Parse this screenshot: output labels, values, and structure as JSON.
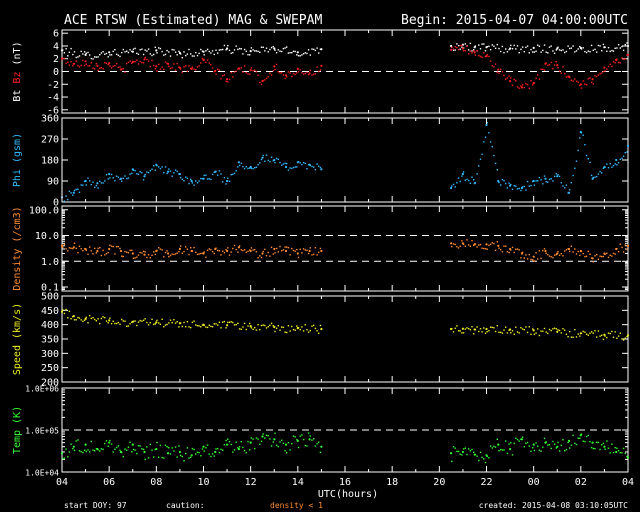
{
  "title": "ACE RTSW (Estimated) MAG & SWEPAM",
  "begin": "Begin: 2015-04-07 04:00:00UTC",
  "xlabel": "UTC(hours)",
  "footer": {
    "start_doy": "start DOY:  97",
    "caution": "caution:",
    "density_warning": "density < 1",
    "created": "created: 2015-04-08 03:10:05UTC"
  },
  "colors": {
    "bt": "#ffffff",
    "bz": "#ff2020",
    "phi": "#33bbff",
    "density": "#ff8c33",
    "speed": "#eeee22",
    "temp": "#33ff33",
    "axes": "#ffffff",
    "warning": "#ff8c33"
  },
  "chart_data": {
    "type": "scatter",
    "x_range": [
      0,
      24
    ],
    "x_ticks": [
      "04",
      "06",
      "08",
      "10",
      "12",
      "14",
      "16",
      "18",
      "20",
      "22",
      "00",
      "02",
      "04"
    ],
    "data_gap_hours": [
      11.3,
      16.4
    ],
    "panels": [
      {
        "id": "mag",
        "ylabel_parts": [
          {
            "text": "Bt",
            "color": "#ffffff"
          },
          {
            "text": " ",
            "color": "#ffffff"
          },
          {
            "text": "Bz",
            "color": "#ff2020"
          },
          {
            "text": " (nT)",
            "color": "#ffffff"
          }
        ],
        "scale": "linear",
        "ylim": [
          -6.5,
          6.5
        ],
        "yticks": [
          -6,
          -4,
          -2,
          0,
          2,
          4,
          6
        ],
        "ytick_labels": [
          "-6",
          "-4",
          "-2",
          "0",
          "2",
          "4",
          "6"
        ],
        "dashed_lines": [
          0
        ],
        "series": [
          {
            "name": "Bt",
            "color": "#ffffff",
            "x": [
              0,
              1,
              2,
              3,
              4,
              5,
              6,
              7,
              8,
              9,
              10,
              11,
              16.5,
              17,
              17.5,
              18,
              19,
              20,
              21,
              22,
              23,
              24
            ],
            "y": [
              3.3,
              2.6,
              3.0,
              3.1,
              3.3,
              2.9,
              3.1,
              3.6,
              3.2,
              3.6,
              3.0,
              3.5,
              4.0,
              4.2,
              3.8,
              3.8,
              3.6,
              3.7,
              3.6,
              3.7,
              3.8,
              4.0
            ]
          },
          {
            "name": "Bz",
            "color": "#ff2020",
            "x": [
              0,
              0.5,
              1,
              1.5,
              2,
              2.5,
              3,
              3.5,
              4,
              4.5,
              5,
              5.5,
              6,
              6.5,
              7,
              7.5,
              8,
              8.5,
              9,
              9.5,
              10,
              10.5,
              11,
              16.5,
              17,
              17.5,
              18,
              18.5,
              19,
              19.5,
              20,
              20.5,
              21,
              21.5,
              22,
              22.5,
              23,
              23.5,
              24
            ],
            "y": [
              2.0,
              1.2,
              1.6,
              0.9,
              1.3,
              0.3,
              1.5,
              1.9,
              0.8,
              1.2,
              0.6,
              0.4,
              1.8,
              0.1,
              -1.2,
              0.5,
              0.2,
              -1.5,
              0.8,
              -0.6,
              0.4,
              -0.3,
              0.9,
              3.4,
              3.6,
              3.0,
              2.4,
              0.3,
              -1.5,
              -2.5,
              -1.8,
              1.2,
              1.0,
              -0.8,
              -2.0,
              -1.2,
              0.6,
              1.8,
              2.6
            ]
          }
        ]
      },
      {
        "id": "phi",
        "ylabel_parts": [
          {
            "text": "Phi (gsm)",
            "color": "#33bbff"
          }
        ],
        "scale": "linear",
        "ylim": [
          0,
          360
        ],
        "yticks": [
          0,
          90,
          180,
          270,
          360
        ],
        "ytick_labels": [
          "0",
          "90",
          "180",
          "270",
          "360"
        ],
        "dashed_lines": [],
        "series": [
          {
            "name": "Phi",
            "color": "#33bbff",
            "x": [
              0,
              0.5,
              1,
              1.5,
              2,
              2.5,
              3,
              3.5,
              4,
              4.5,
              5,
              5.5,
              6,
              6.5,
              7,
              7.5,
              8,
              8.5,
              9,
              9.5,
              10,
              10.5,
              11,
              16.5,
              17,
              17.5,
              18,
              18.5,
              19,
              19.5,
              20,
              20.5,
              21,
              21.5,
              22,
              22.5,
              23,
              23.5,
              24
            ],
            "y": [
              20,
              40,
              90,
              80,
              120,
              100,
              140,
              110,
              160,
              130,
              120,
              90,
              100,
              130,
              90,
              170,
              150,
              190,
              180,
              150,
              170,
              160,
              140,
              60,
              120,
              80,
              330,
              90,
              70,
              60,
              90,
              100,
              110,
              40,
              300,
              100,
              150,
              180,
              240
            ]
          }
        ]
      },
      {
        "id": "density",
        "ylabel_parts": [
          {
            "text": "Density (/cm3)",
            "color": "#ff8c33"
          }
        ],
        "scale": "log",
        "ylim": [
          0.07,
          140
        ],
        "yticks": [
          0.1,
          1,
          10,
          100
        ],
        "ytick_labels": [
          "0.1",
          "1.0",
          "10.0",
          "100.0"
        ],
        "dashed_lines": [
          1,
          10
        ],
        "series": [
          {
            "name": "Density",
            "color": "#ff8c33",
            "x": [
              0,
              0.5,
              1,
              1.5,
              2,
              2.5,
              3,
              3.5,
              4,
              4.5,
              5,
              5.5,
              6,
              6.5,
              7,
              7.5,
              8,
              8.5,
              9,
              9.5,
              10,
              10.5,
              11,
              16.5,
              17,
              17.5,
              18,
              18.5,
              19,
              19.5,
              20,
              20.5,
              21,
              21.5,
              22,
              22.5,
              23,
              23.5,
              24
            ],
            "y": [
              4.0,
              3.5,
              3.0,
              2.5,
              3.0,
              2.5,
              2.0,
              1.8,
              2.5,
              2.0,
              3.0,
              2.5,
              2.0,
              3.0,
              2.5,
              3.5,
              2.5,
              2.0,
              3.0,
              2.5,
              2.0,
              2.5,
              2.5,
              5.0,
              5.0,
              4.5,
              4.5,
              4.0,
              3.0,
              2.0,
              1.5,
              2.5,
              2.0,
              3.0,
              2.5,
              1.3,
              2.0,
              3.0,
              4.0
            ]
          }
        ]
      },
      {
        "id": "speed",
        "ylabel_parts": [
          {
            "text": "Speed (km/s)",
            "color": "#eeee22"
          }
        ],
        "scale": "linear",
        "ylim": [
          200,
          500
        ],
        "yticks": [
          200,
          250,
          300,
          350,
          400,
          450,
          500
        ],
        "ytick_labels": [
          "200",
          "250",
          "300",
          "350",
          "400",
          "450",
          "500"
        ],
        "dashed_lines": [],
        "series": [
          {
            "name": "Speed",
            "color": "#eeee22",
            "x": [
              0,
              0.5,
              1,
              2,
              3,
              4,
              5,
              6,
              7,
              8,
              9,
              10,
              11,
              16.5,
              17,
              17.5,
              18,
              19,
              20,
              21,
              22,
              23,
              24
            ],
            "y": [
              445,
              430,
              420,
              415,
              410,
              408,
              405,
              400,
              398,
              395,
              392,
              388,
              385,
              385,
              386,
              383,
              385,
              383,
              380,
              375,
              370,
              365,
              363
            ]
          }
        ]
      },
      {
        "id": "temp",
        "ylabel_parts": [
          {
            "text": "Temp (K)",
            "color": "#33ff33"
          }
        ],
        "scale": "log",
        "ylim": [
          10000,
          1000000
        ],
        "yticks": [
          10000,
          100000,
          1000000
        ],
        "ytick_labels": [
          "1.0E+04",
          "1.0E+05",
          "1.0E+06"
        ],
        "dashed_lines": [
          100000
        ],
        "series": [
          {
            "name": "Temp",
            "color": "#33ff33",
            "x": [
              0,
              0.5,
              1,
              1.5,
              2,
              2.5,
              3,
              3.5,
              4,
              4.5,
              5,
              5.5,
              6,
              6.5,
              7,
              7.5,
              8,
              8.5,
              9,
              9.5,
              10,
              10.5,
              11,
              16.5,
              17,
              17.5,
              18,
              18.5,
              19,
              19.5,
              20,
              20.5,
              21,
              21.5,
              22,
              22.5,
              23,
              23.5,
              24
            ],
            "y": [
              28000,
              40000,
              45000,
              35000,
              50000,
              30000,
              45000,
              30000,
              35000,
              28000,
              30000,
              25000,
              40000,
              30000,
              45000,
              35000,
              50000,
              70000,
              60000,
              45000,
              55000,
              60000,
              40000,
              28000,
              30000,
              26000,
              25000,
              45000,
              35000,
              60000,
              45000,
              50000,
              40000,
              55000,
              75000,
              50000,
              40000,
              30000,
              22000
            ]
          }
        ]
      }
    ]
  }
}
